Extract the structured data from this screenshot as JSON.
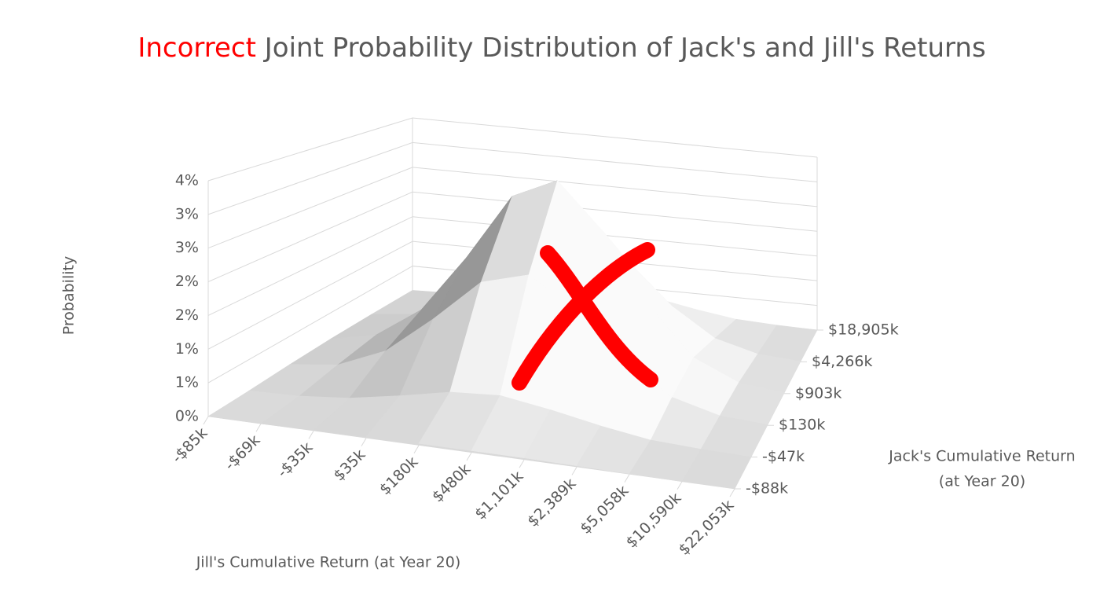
{
  "chart_data": {
    "type": "surface",
    "title_highlight": "Incorrect",
    "title": "Joint Probability Distribution of Jack's and Jill's Returns",
    "x_label": "Jill's Cumulative Return (at Year 20)",
    "y_label": [
      "Jack's Cumulative Return",
      "(at Year 20)"
    ],
    "z_label": "Probability",
    "x_categories": [
      "-$85k",
      "-$69k",
      "-$35k",
      "$35k",
      "$180k",
      "$480k",
      "$1,101k",
      "$2,389k",
      "$5,058k",
      "$10,590k",
      "$22,053k"
    ],
    "y_categories": [
      "-$88k",
      "-$47k",
      "$130k",
      "$903k",
      "$4,266k",
      "$18,905k"
    ],
    "zlim": [
      0,
      3.5
    ],
    "zticks": [
      {
        "value": 0,
        "label": "0%"
      },
      {
        "value": 0.5,
        "label": "1%"
      },
      {
        "value": 1,
        "label": "1%"
      },
      {
        "value": 1.5,
        "label": "2%"
      },
      {
        "value": 2,
        "label": "2%"
      },
      {
        "value": 2.5,
        "label": "3%"
      },
      {
        "value": 3,
        "label": "3%"
      },
      {
        "value": 3.5,
        "label": "4%"
      }
    ],
    "values": [
      [
        0,
        0,
        0.01,
        0.02,
        0.03,
        0.03,
        0.03,
        0.02,
        0.01,
        0,
        0
      ],
      [
        0.01,
        0.03,
        0.1,
        0.24,
        0.4,
        0.45,
        0.33,
        0.18,
        0.06,
        0.02,
        0
      ],
      [
        0.03,
        0.12,
        0.45,
        1.08,
        1.79,
        2.01,
        1.53,
        0.79,
        0.27,
        0.06,
        0.01
      ],
      [
        0.04,
        0.2,
        0.74,
        1.76,
        2.93,
        3.3,
        2.5,
        1.3,
        0.45,
        0.1,
        0.02
      ],
      [
        0.03,
        0.12,
        0.45,
        1.08,
        1.79,
        2.01,
        1.53,
        0.79,
        0.27,
        0.06,
        0.01
      ],
      [
        0.01,
        0.03,
        0.1,
        0.24,
        0.4,
        0.45,
        0.33,
        0.18,
        0.06,
        0.02,
        0
      ]
    ]
  }
}
